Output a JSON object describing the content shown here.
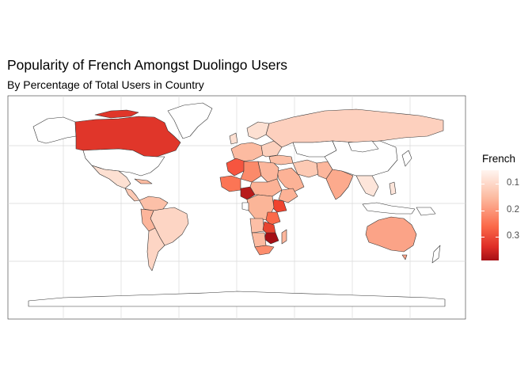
{
  "title": "Popularity of French Amongst Duolingo Users",
  "subtitle": "By Percentage of Total Users in Country",
  "legend": {
    "title": "French",
    "ticks": [
      "0.1",
      "0.2",
      "0.3"
    ],
    "low_color": "#fff5f0",
    "high_color": "#a50f15"
  },
  "chart_data": {
    "type": "heatmap",
    "title": "Popularity of French Amongst Duolingo Users",
    "subtitle": "By Percentage of Total Users in Country",
    "value_name": "French",
    "color_scale": {
      "low": "#fff5f0",
      "high": "#a50f15",
      "range": [
        0.0,
        0.35
      ]
    },
    "grid": true,
    "legend_position": "right",
    "regions": [
      {
        "name": "Canada",
        "value": 0.3
      },
      {
        "name": "United States",
        "value": null
      },
      {
        "name": "Mexico",
        "value": 0.09
      },
      {
        "name": "Brazil",
        "value": 0.1
      },
      {
        "name": "Argentina",
        "value": 0.1
      },
      {
        "name": "Russia",
        "value": 0.12
      },
      {
        "name": "China",
        "value": null
      },
      {
        "name": "India",
        "value": 0.14
      },
      {
        "name": "Australia",
        "value": 0.18
      },
      {
        "name": "Nigeria",
        "value": 0.32
      },
      {
        "name": "Morocco",
        "value": 0.22
      },
      {
        "name": "Kenya",
        "value": 0.24
      },
      {
        "name": "Zimbabwe",
        "value": 0.31
      },
      {
        "name": "Saudi Arabia",
        "value": 0.16
      },
      {
        "name": "Iran",
        "value": 0.12
      }
    ]
  }
}
